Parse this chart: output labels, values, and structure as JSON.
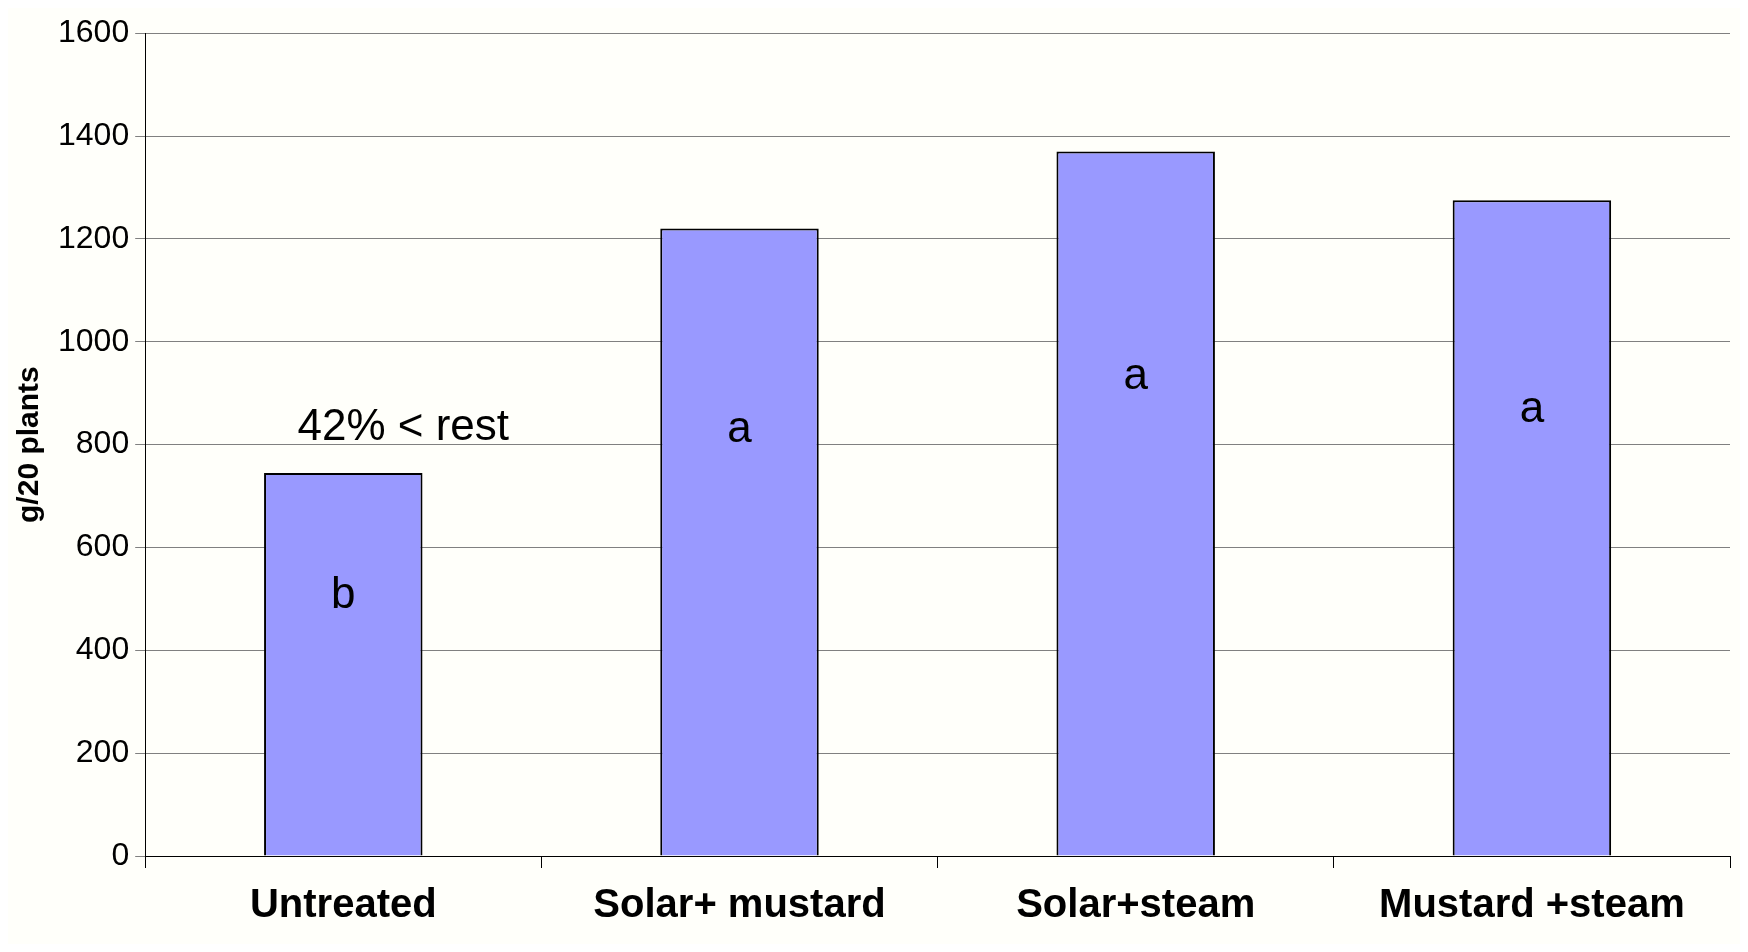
{
  "chart_data": {
    "type": "bar",
    "ylabel": "g/20 plants",
    "categories": [
      "Untreated",
      "Solar+ mustard",
      "Solar+steam",
      "Mustard +steam"
    ],
    "values": [
      745,
      1220,
      1370,
      1275
    ],
    "color": "#9999ff",
    "ylim": [
      0,
      1600
    ],
    "yticks": [
      0,
      200,
      400,
      600,
      800,
      1000,
      1200,
      1400,
      1600
    ],
    "grid": "y",
    "annotations": [
      "42% < rest",
      "b",
      "a",
      "a",
      "a"
    ]
  }
}
